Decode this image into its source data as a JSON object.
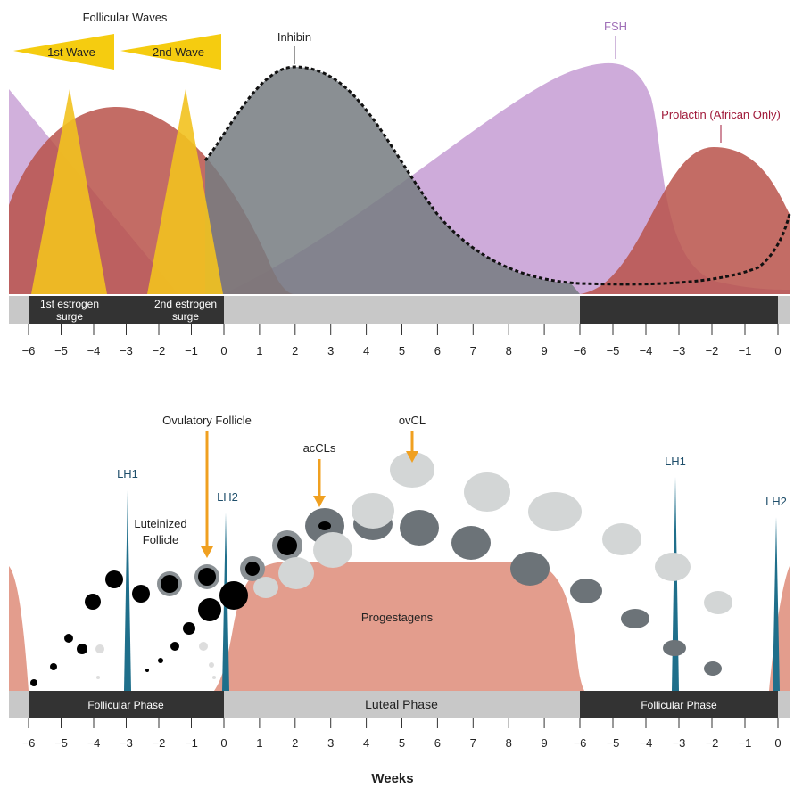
{
  "top": {
    "wave_title": "Follicular Waves",
    "waves": [
      "1st Wave",
      "2nd Wave"
    ],
    "inhibin": "Inhibin",
    "fsh": "FSH",
    "prolactin": "Prolactin (African Only)",
    "surges": [
      [
        "1st estrogen",
        "surge"
      ],
      [
        "2nd estrogen",
        "surge"
      ]
    ],
    "ticks": [
      "−6",
      "−5",
      "−4",
      "−3",
      "−2",
      "−1",
      "0",
      "1",
      "2",
      "3",
      "4",
      "5",
      "6",
      "7",
      "8",
      "9",
      "−6",
      "−5",
      "−4",
      "−3",
      "−2",
      "−1",
      "0"
    ]
  },
  "bottom": {
    "ovulatory": "Ovulatory Follicle",
    "accls": "acCLs",
    "ovcl": "ovCL",
    "lh": [
      "LH1",
      "LH2",
      "LH1",
      "LH2"
    ],
    "luteinized": [
      "Luteinized",
      "Follicle"
    ],
    "progestagens": "Progestagens",
    "phases": [
      "Follicular Phase",
      "Luteal Phase",
      "Follicular Phase"
    ],
    "ticks": [
      "−6",
      "−5",
      "−4",
      "−3",
      "−2",
      "−1",
      "0",
      "1",
      "2",
      "3",
      "4",
      "5",
      "6",
      "7",
      "8",
      "9",
      "−6",
      "−5",
      "−4",
      "−3",
      "−2",
      "−1",
      "0"
    ],
    "x_label": "Weeks"
  }
}
